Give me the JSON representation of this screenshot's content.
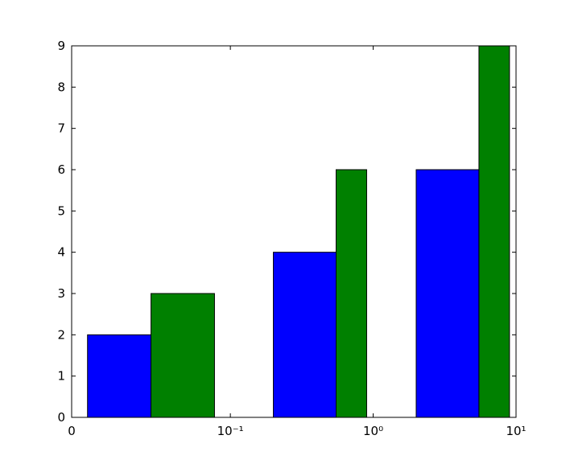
{
  "chart_data": {
    "type": "bar",
    "xscale": "symlog",
    "linthresh": 0.1,
    "linscale": 1,
    "xlim": [
      0,
      10
    ],
    "xticks": [
      0,
      {
        "value": 0.1,
        "label": "10⁻¹"
      },
      {
        "value": 1,
        "label": "10⁰"
      },
      {
        "value": 10,
        "label": "10¹"
      }
    ],
    "ylim": [
      0,
      9
    ],
    "yticks": [
      0,
      1,
      2,
      3,
      4,
      5,
      6,
      7,
      8,
      9
    ],
    "series": [
      {
        "color": "#0000ff",
        "x_left": [
          0.01,
          0.2,
          2
        ],
        "x_right": [
          0.05,
          0.55,
          5.5
        ],
        "values": [
          2,
          4,
          6
        ]
      },
      {
        "color": "#008000",
        "x_left": [
          0.05,
          0.55,
          5.5
        ],
        "x_right": [
          0.09,
          0.9,
          9
        ],
        "values": [
          3,
          6,
          9
        ]
      }
    ]
  }
}
